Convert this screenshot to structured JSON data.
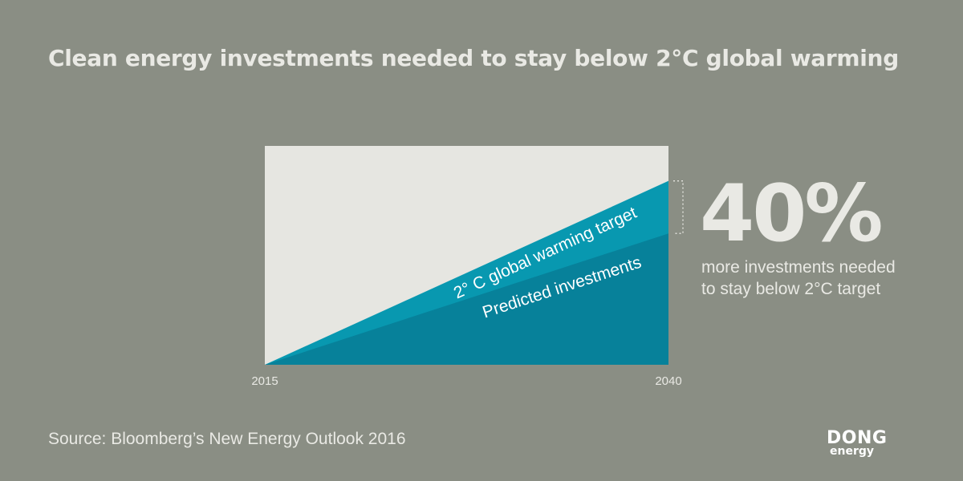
{
  "title": "Clean energy investments needed to stay below 2°C global warming",
  "highlight": {
    "value": "40%",
    "caption_line1": "more investments needed",
    "caption_line2": "to stay below 2°C target"
  },
  "source": "Source: Bloomberg’s New Energy Outlook 2016",
  "logo": {
    "line1": "DONG",
    "line2": "energy"
  },
  "chart_data": {
    "type": "area",
    "x": [
      "2015",
      "2040"
    ],
    "series": [
      {
        "name": "2° C global warming target",
        "values": [
          0,
          84
        ]
      },
      {
        "name": "Predicted investments",
        "values": [
          0,
          60
        ]
      }
    ],
    "ylim": [
      0,
      100
    ],
    "xlabel": "",
    "ylabel": "",
    "grid": false,
    "legend": "inline",
    "colors": {
      "plot_bg": "#e6e6e1",
      "target": "#0898b0",
      "predicted": "#07819a",
      "bracket": "#e6e6e1",
      "tick_text": "#e9e9e4",
      "label_text": "#ffffff"
    }
  }
}
